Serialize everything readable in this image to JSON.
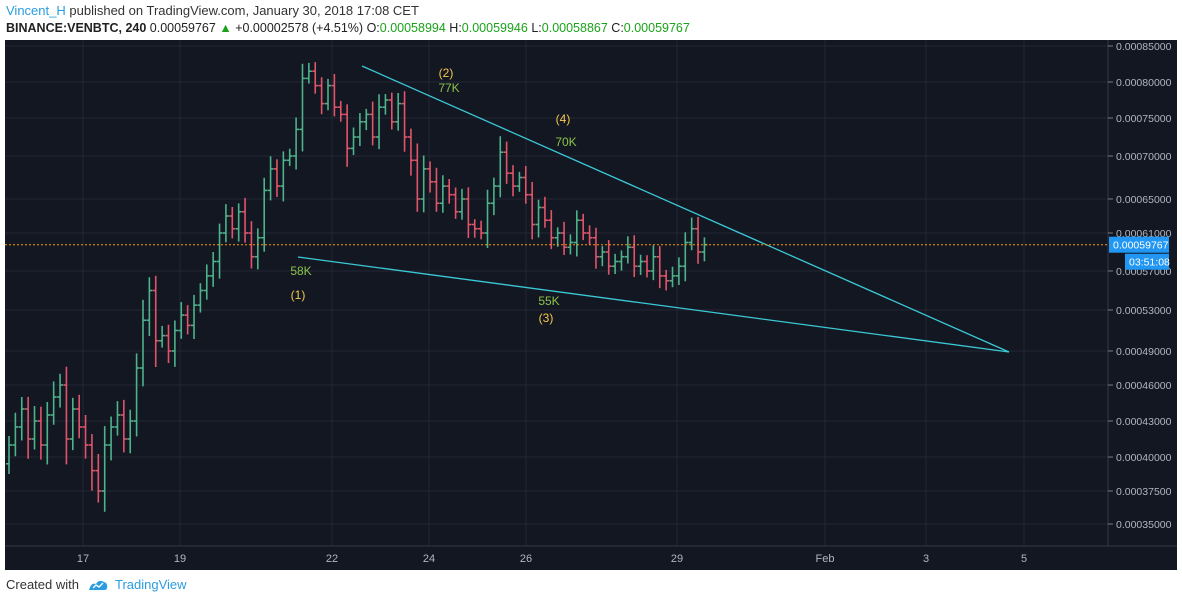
{
  "header": {
    "author": "Vincent_H",
    "published_text": "published on TradingView.com, January 30, 2018 17:08 CET",
    "symbol": "BINANCE:VENBTC, 240",
    "last": "0.00059767",
    "change_arrow": "▲",
    "change": "+0.00002578 (+4.51%)",
    "o_label": "O:",
    "o": "0.00058994",
    "h_label": "H:",
    "h": "0.00059946",
    "l_label": "L:",
    "l": "0.00058867",
    "c_label": "C:",
    "c": "0.00059767"
  },
  "footer": {
    "created_with": "Created with",
    "brand": "TradingView"
  },
  "colors": {
    "background": "#131722",
    "up": "#4db38a",
    "down": "#e0556a",
    "trendline": "#3bc9d6",
    "price_line": "#ff9800",
    "price_label": "#2196f3",
    "annotation_yellow": "#f5c84c",
    "annotation_green": "#8bc34a"
  },
  "chart_data": {
    "type": "ohlc",
    "timeframe": "240",
    "y_ticks": [
      "0.00085000",
      "0.00080000",
      "0.00075000",
      "0.00070000",
      "0.00065000",
      "0.00061000",
      "0.00057000",
      "0.00053000",
      "0.00049000",
      "0.00046000",
      "0.00043000",
      "0.00040000",
      "0.00037500",
      "0.00035000"
    ],
    "x_ticks": [
      "17",
      "19",
      "22",
      "24",
      "26",
      "29",
      "Feb",
      "3",
      "5"
    ],
    "current_price": "0.00059767",
    "countdown": "03:51:08",
    "annotations": [
      {
        "label": "(1)",
        "volume": "58K"
      },
      {
        "label": "(2)",
        "volume": "77K"
      },
      {
        "label": "(3)",
        "volume": "55K"
      },
      {
        "label": "(4)",
        "volume": "70K"
      }
    ],
    "closes": [
      41.0,
      42.5,
      44.0,
      41.5,
      43.0,
      41.0,
      43.5,
      45.0,
      46.0,
      41.5,
      44.0,
      42.5,
      41.0,
      39.0,
      37.5,
      41.0,
      42.5,
      43.5,
      41.5,
      43.0,
      47.5,
      52.0,
      55.0,
      50.0,
      50.5,
      49.0,
      51.0,
      52.5,
      51.5,
      53.5,
      55.0,
      56.5,
      58.0,
      61.0,
      63.0,
      61.5,
      63.5,
      61.0,
      58.5,
      60.5,
      66.0,
      68.5,
      66.5,
      69.5,
      70.0,
      73.5,
      80.5,
      81.5,
      79.5,
      77.0,
      79.5,
      76.5,
      75.5,
      71.0,
      72.5,
      74.5,
      75.5,
      72.5,
      76.5,
      77.5,
      74.5,
      77.0,
      72.5,
      69.5,
      65.0,
      68.5,
      67.0,
      64.5,
      66.5,
      65.5,
      63.5,
      65.0,
      62.0,
      61.5,
      61.0,
      64.5,
      66.5,
      70.5,
      68.0,
      66.5,
      67.5,
      65.5,
      62.0,
      64.0,
      62.5,
      60.5,
      61.0,
      59.5,
      60.0,
      62.5,
      61.0,
      60.5,
      58.5,
      59.0,
      57.5,
      58.0,
      58.5,
      59.5,
      57.5,
      58.0,
      57.0,
      58.5,
      56.5,
      56.0,
      56.5,
      57.5,
      60.0,
      61.5,
      59.0,
      59.77
    ]
  }
}
